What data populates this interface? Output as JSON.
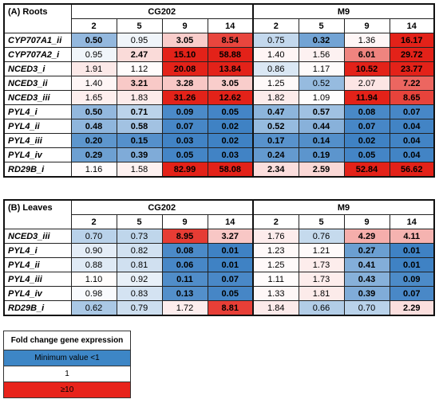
{
  "panels": [
    {
      "label": "(A) Roots",
      "groups": [
        "CG202",
        "M9"
      ],
      "days": [
        "2",
        "5",
        "9",
        "14",
        "2",
        "5",
        "9",
        "14"
      ],
      "rows": [
        {
          "gene": "CYP707A1_ii",
          "values": [
            "0.50",
            "0.95",
            "3.05",
            "8.54",
            "0.75",
            "0.32",
            "1.36",
            "16.17"
          ],
          "bold": [
            true,
            false,
            true,
            true,
            false,
            true,
            false,
            true
          ]
        },
        {
          "gene": "CYP707A2_i",
          "values": [
            "0.95",
            "2.47",
            "15.10",
            "58.88",
            "1.40",
            "1.56",
            "6.01",
            "29.72"
          ],
          "bold": [
            false,
            true,
            true,
            true,
            false,
            false,
            true,
            true
          ]
        },
        {
          "gene": "NCED3_i",
          "values": [
            "1.91",
            "1.12",
            "20.08",
            "13.84",
            "0.86",
            "1.17",
            "10.52",
            "23.77"
          ],
          "bold": [
            false,
            false,
            true,
            true,
            false,
            false,
            true,
            true
          ]
        },
        {
          "gene": "NCED3_ii",
          "values": [
            "1.40",
            "3.21",
            "3.28",
            "3.05",
            "1.25",
            "0.52",
            "2.07",
            "7.22"
          ],
          "bold": [
            false,
            true,
            true,
            true,
            false,
            false,
            false,
            true
          ]
        },
        {
          "gene": "NCED3_iii",
          "values": [
            "1.65",
            "1.83",
            "31.26",
            "12.62",
            "1.82",
            "1.09",
            "11.94",
            "8.65"
          ],
          "bold": [
            false,
            false,
            true,
            true,
            false,
            false,
            true,
            true
          ]
        },
        {
          "gene": "PYL4_i",
          "values": [
            "0.50",
            "0.71",
            "0.09",
            "0.05",
            "0.47",
            "0.57",
            "0.08",
            "0.07"
          ],
          "bold": [
            true,
            true,
            true,
            true,
            true,
            true,
            true,
            true
          ]
        },
        {
          "gene": "PYL4_ii",
          "values": [
            "0.48",
            "0.58",
            "0.07",
            "0.02",
            "0.52",
            "0.44",
            "0.07",
            "0.04"
          ],
          "bold": [
            true,
            true,
            true,
            true,
            true,
            true,
            true,
            true
          ]
        },
        {
          "gene": "PYL4_iii",
          "values": [
            "0.20",
            "0.15",
            "0.03",
            "0.02",
            "0.17",
            "0.14",
            "0.02",
            "0.04"
          ],
          "bold": [
            true,
            true,
            true,
            true,
            true,
            true,
            true,
            true
          ]
        },
        {
          "gene": "PYL4_iv",
          "values": [
            "0.29",
            "0.39",
            "0.05",
            "0.03",
            "0.24",
            "0.19",
            "0.05",
            "0.04"
          ],
          "bold": [
            true,
            true,
            true,
            true,
            true,
            true,
            true,
            true
          ]
        },
        {
          "gene": "RD29B_i",
          "values": [
            "1.16",
            "1.58",
            "82.99",
            "58.08",
            "2.34",
            "2.59",
            "52.84",
            "56.62"
          ],
          "bold": [
            false,
            false,
            true,
            true,
            true,
            true,
            true,
            true
          ]
        }
      ]
    },
    {
      "label": "(B) Leaves",
      "groups": [
        "CG202",
        "M9"
      ],
      "days": [
        "2",
        "5",
        "9",
        "14",
        "2",
        "5",
        "9",
        "14"
      ],
      "rows": [
        {
          "gene": "NCED3_iii",
          "values": [
            "0.70",
            "0.73",
            "8.95",
            "3.27",
            "1.76",
            "0.76",
            "4.29",
            "4.11"
          ],
          "bold": [
            false,
            false,
            true,
            true,
            false,
            false,
            true,
            true
          ]
        },
        {
          "gene": "PYL4_i",
          "values": [
            "0.90",
            "0.82",
            "0.08",
            "0.01",
            "1.23",
            "1.21",
            "0.27",
            "0.01"
          ],
          "bold": [
            false,
            false,
            true,
            true,
            false,
            false,
            true,
            true
          ]
        },
        {
          "gene": "PYL4_ii",
          "values": [
            "0.88",
            "0.81",
            "0.06",
            "0.01",
            "1.25",
            "1.73",
            "0.41",
            "0.01"
          ],
          "bold": [
            false,
            false,
            true,
            true,
            false,
            false,
            true,
            true
          ]
        },
        {
          "gene": "PYL4_iii",
          "values": [
            "1.10",
            "0.92",
            "0.11",
            "0.07",
            "1.11",
            "1.73",
            "0.43",
            "0.09"
          ],
          "bold": [
            false,
            false,
            true,
            true,
            false,
            false,
            true,
            true
          ]
        },
        {
          "gene": "PYL4_iv",
          "values": [
            "0.98",
            "0.83",
            "0.13",
            "0.05",
            "1.33",
            "1.81",
            "0.39",
            "0.07"
          ],
          "bold": [
            false,
            false,
            true,
            true,
            false,
            false,
            true,
            true
          ]
        },
        {
          "gene": "RD29B_i",
          "values": [
            "0.62",
            "0.79",
            "1.72",
            "8.81",
            "1.84",
            "0.66",
            "0.70",
            "2.29"
          ],
          "bold": [
            false,
            false,
            false,
            true,
            false,
            false,
            false,
            true
          ]
        }
      ]
    }
  ],
  "legend": {
    "title": "Fold change gene expression",
    "items": [
      {
        "label": "Minimum value <1",
        "color": "#3d86c6"
      },
      {
        "label": "1",
        "color": "#ffffff"
      },
      {
        "label": "≥10",
        "color": "#e8231b"
      }
    ]
  },
  "colors": {
    "min": "#3f82c4",
    "mid": "#ffffff",
    "max": "#e32219"
  },
  "chart_data": [
    {
      "type": "heatmap",
      "title": "(A) Roots",
      "groups": [
        "CG202",
        "M9"
      ],
      "x": [
        "2",
        "5",
        "9",
        "14"
      ],
      "y": [
        "CYP707A1_ii",
        "CYP707A2_i",
        "NCED3_i",
        "NCED3_ii",
        "NCED3_iii",
        "PYL4_i",
        "PYL4_ii",
        "PYL4_iii",
        "PYL4_iv",
        "RD29B_i"
      ]
    },
    {
      "type": "heatmap",
      "title": "(B) Leaves",
      "groups": [
        "CG202",
        "M9"
      ],
      "x": [
        "2",
        "5",
        "9",
        "14"
      ],
      "y": [
        "NCED3_iii",
        "PYL4_i",
        "PYL4_ii",
        "PYL4_iii",
        "PYL4_iv",
        "RD29B_i"
      ]
    }
  ]
}
